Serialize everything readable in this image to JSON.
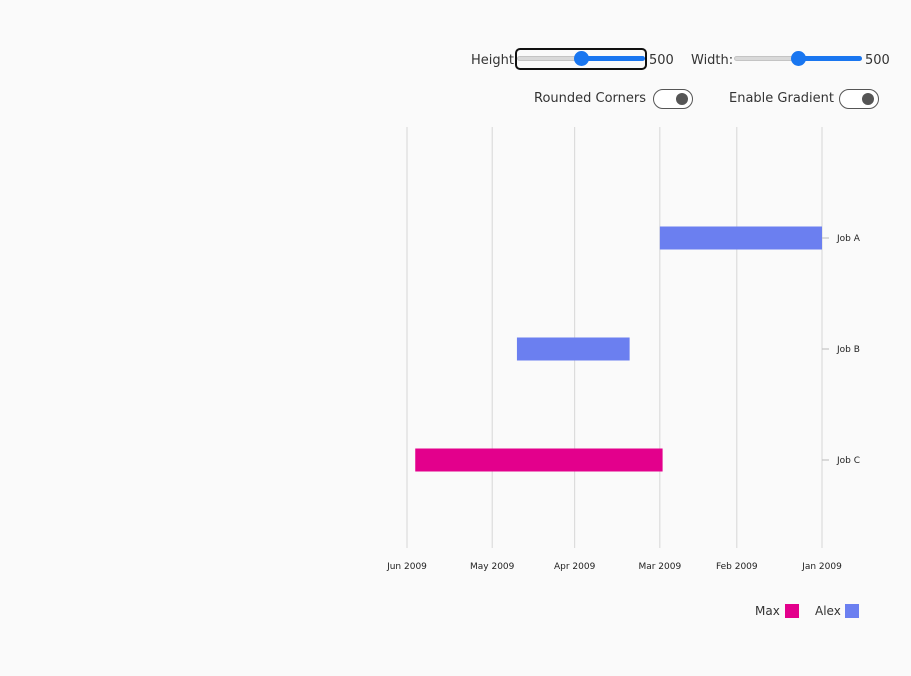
{
  "controls": {
    "height_label": "Height:",
    "height_value": "500",
    "height_level": 0.5,
    "width_label": "Width:",
    "width_value": "500",
    "width_level": 0.5,
    "rounded_label": "Rounded Corners",
    "gradient_label": "Enable Gradient"
  },
  "colors": {
    "Max": "#e3008c",
    "Alex": "#6b7ff0",
    "grid": "#d6d6d6",
    "accent": "#1976f0"
  },
  "chart_data": {
    "type": "bar",
    "orientation": "horizontal-gantt",
    "x_axis": {
      "ticks": [
        "Jan 2009",
        "Feb 2009",
        "Mar 2009",
        "Apr 2009",
        "May 2009",
        "Jun 2009"
      ],
      "tick_values": [
        "2009-01-01",
        "2009-02-01",
        "2009-03-01",
        "2009-04-01",
        "2009-05-01",
        "2009-06-01"
      ],
      "direction": "reversed",
      "range": [
        "2009-01-01",
        "2009-06-01"
      ]
    },
    "y_axis": {
      "categories": [
        "Job A",
        "Job B",
        "Job C"
      ],
      "position": "right"
    },
    "series": [
      {
        "name": "Max",
        "color": "#e3008c",
        "tasks": [
          {
            "category": "Job C",
            "start": "2009-02-28",
            "end": "2009-05-29"
          }
        ]
      },
      {
        "name": "Alex",
        "color": "#6b7ff0",
        "tasks": [
          {
            "category": "Job A",
            "start": "2009-01-01",
            "end": "2009-03-01"
          },
          {
            "category": "Job B",
            "start": "2009-03-12",
            "end": "2009-04-22"
          }
        ]
      }
    ],
    "legend": [
      "Max",
      "Alex"
    ],
    "legend_position": "bottom-right",
    "grid": true
  }
}
